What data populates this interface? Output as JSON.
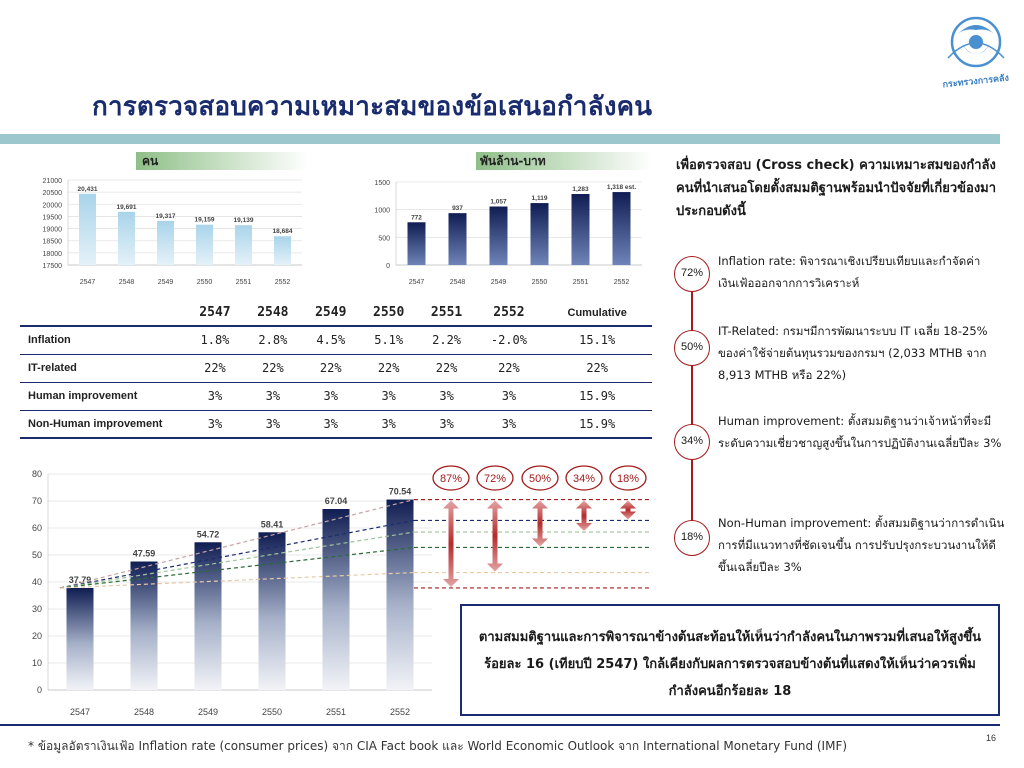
{
  "slide": {
    "title": "การตรวจสอบความเหมาะสมของข้อเสนอกำลังคน",
    "logo_text": "กระทรวงการคลัง",
    "page_number": "16",
    "footnote": "* ข้อมูลอัตราเงินเฟ้อ Inflation rate (consumer prices) จาก CIA Fact book และ World Economic Outlook จาก International Monetary Fund (IMF)"
  },
  "labels": {
    "people": "คน",
    "baht": "พันล้าน-บาท"
  },
  "assumptions": {
    "headers": [
      "2547",
      "2548",
      "2549",
      "2550",
      "2551",
      "2552",
      "Cumulative"
    ],
    "rows": [
      {
        "name": "Inflation",
        "values": [
          "1.8%",
          "2.8%",
          "4.5%",
          "5.1%",
          "2.2%",
          "-2.0%",
          "15.1%"
        ]
      },
      {
        "name": "IT-related",
        "values": [
          "22%",
          "22%",
          "22%",
          "22%",
          "22%",
          "22%",
          "22%"
        ]
      },
      {
        "name": "Human improvement",
        "values": [
          "3%",
          "3%",
          "3%",
          "3%",
          "3%",
          "3%",
          "15.9%"
        ]
      },
      {
        "name": "Non-Human improvement",
        "values": [
          "3%",
          "3%",
          "3%",
          "3%",
          "3%",
          "3%",
          "15.9%"
        ]
      }
    ]
  },
  "right_panel": {
    "intro": "เพื่อตรวจสอบ (Cross check) ความเหมาะสมของกำลังคนที่นำเสนอโดยตั้งสมมติฐานพร้อมนำปัจจัยที่เกี่ยวข้องมาประกอบดังนี้",
    "factors": [
      {
        "pct": "72%",
        "text": "Inflation rate: พิจารณาเชิงเปรียบเทียบและกำจัดค่าเงินเฟ้อออกจากการวิเคราะห์"
      },
      {
        "pct": "50%",
        "text": "IT-Related: กรมฯมีการพัฒนาระบบ IT เฉลี่ย 18-25% ของค่าใช้จ่ายต้นทุนรวมของกรมฯ (2,033 MTHB จาก 8,913 MTHB หรือ 22%)"
      },
      {
        "pct": "34%",
        "text": "Human improvement: ตั้งสมมติฐานว่าเจ้าหน้าที่จะมีระดับความเชี่ยวชาญสูงขึ้นในการปฏิบัติงานเฉลี่ยปีละ 3%"
      },
      {
        "pct": "18%",
        "text": "Non-Human improvement: ตั้งสมมติฐานว่าการดำเนินการที่มีแนวทางที่ชัดเจนขึ้น การปรับปรุงกระบวนงานให้ดีขึ้นเฉลี่ยปีละ 3%"
      }
    ],
    "conclusion": "ตามสมมติฐานและการพิจารณาข้างต้นสะท้อนให้เห็นว่ากำลังคนในภาพรวมที่เสนอให้สูงขึ้นร้อยละ 16 (เทียบปี 2547) ใกล้เคียงกับผลการตรวจสอบข้างต้นที่แสดงให้เห็นว่าควรเพิ่มกำลังคนอีกร้อยละ 18"
  },
  "colors": {
    "navy": "#1a2c6e",
    "light_blue": "#a9d4ea",
    "accent_red": "#a31b1b",
    "green_band": "#8fbf88",
    "title_bar": "#9cc7cd"
  },
  "chart_data": [
    {
      "type": "bar",
      "categories": [
        "2547",
        "2548",
        "2549",
        "2550",
        "2551",
        "2552"
      ],
      "values": [
        20431,
        19691,
        19317,
        19159,
        19139,
        18684
      ],
      "value_labels": [
        "20,431",
        "19,691",
        "19,317",
        "19,159",
        "19,139",
        "18,684"
      ],
      "ylim": [
        17500,
        21000
      ],
      "yticks": [
        "17500",
        "18000",
        "18500",
        "19000",
        "19500",
        "20000",
        "20500",
        "21000"
      ],
      "ylabel": "คน",
      "grid": true
    },
    {
      "type": "bar",
      "categories": [
        "2547",
        "2548",
        "2549",
        "2550",
        "2551",
        "2552"
      ],
      "values": [
        772,
        937,
        1057,
        1119,
        1283,
        1318
      ],
      "value_labels": [
        "772",
        "937",
        "1,057",
        "1,119",
        "1,283",
        "1,318 est."
      ],
      "ylim": [
        0,
        1500
      ],
      "yticks": [
        "0",
        "500",
        "1000",
        "1500"
      ],
      "ylabel": "พันล้าน-บาท",
      "grid": true
    },
    {
      "type": "bar",
      "categories": [
        "2547",
        "2548",
        "2549",
        "2550",
        "2551",
        "2552"
      ],
      "values": [
        37.79,
        47.59,
        54.72,
        58.41,
        67.04,
        70.54
      ],
      "value_labels": [
        "37.79",
        "47.59",
        "54.72",
        "58.41",
        "67.04",
        "70.54"
      ],
      "ylim": [
        0,
        80
      ],
      "yticks": [
        "0",
        "10",
        "20",
        "30",
        "40",
        "50",
        "60",
        "70",
        "80"
      ],
      "grid": true,
      "adjustment_levels": [
        {
          "label": "87%",
          "value": 37.79
        },
        {
          "label": "72%",
          "value": 43.5
        },
        {
          "label": "50%",
          "value": 52.8
        },
        {
          "label": "34%",
          "value": 58.5
        },
        {
          "label": "18%",
          "value": 62.8
        }
      ],
      "adjustment_pcts": [
        "87%",
        "72%",
        "50%",
        "34%",
        "18%"
      ]
    }
  ]
}
